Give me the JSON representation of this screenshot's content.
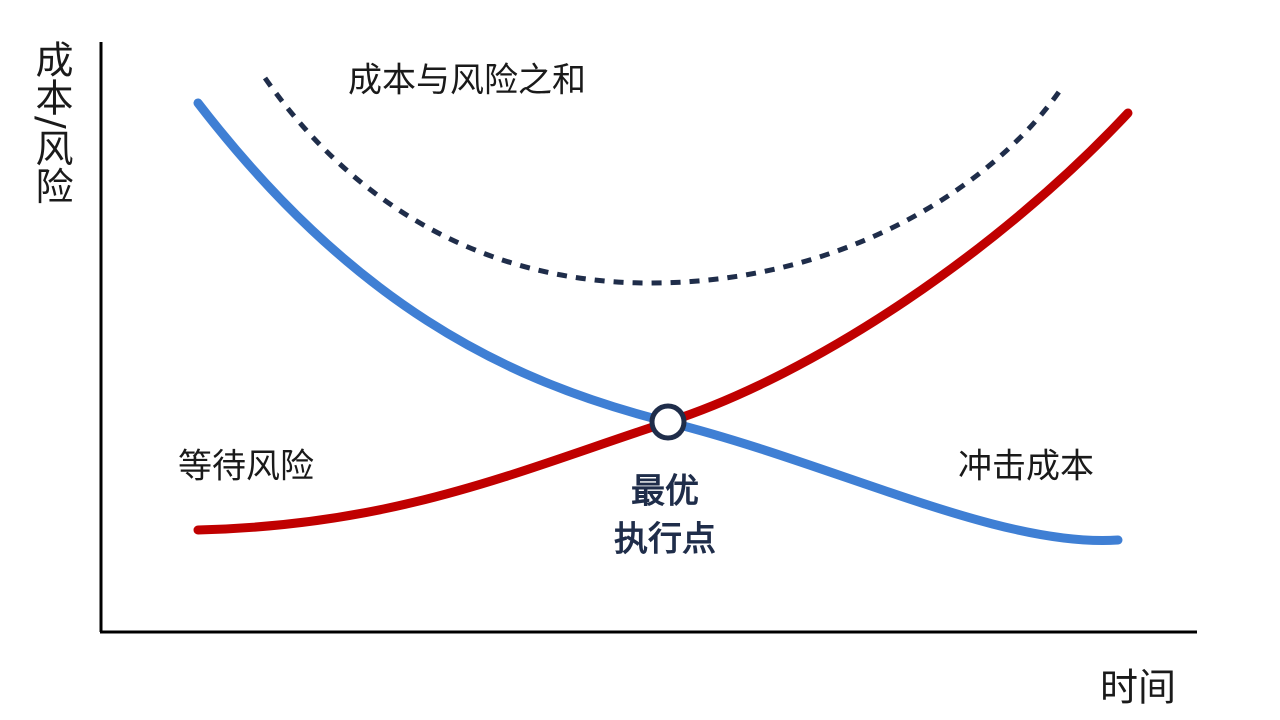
{
  "y_axis_label": "成本/风险",
  "x_axis_label": "时间",
  "curves": {
    "sum": "成本与风险之和",
    "waiting_risk": "等待风险",
    "impact_cost": "冲击成本"
  },
  "optimal_point": {
    "lines": [
      "最优",
      "执行点"
    ]
  }
}
